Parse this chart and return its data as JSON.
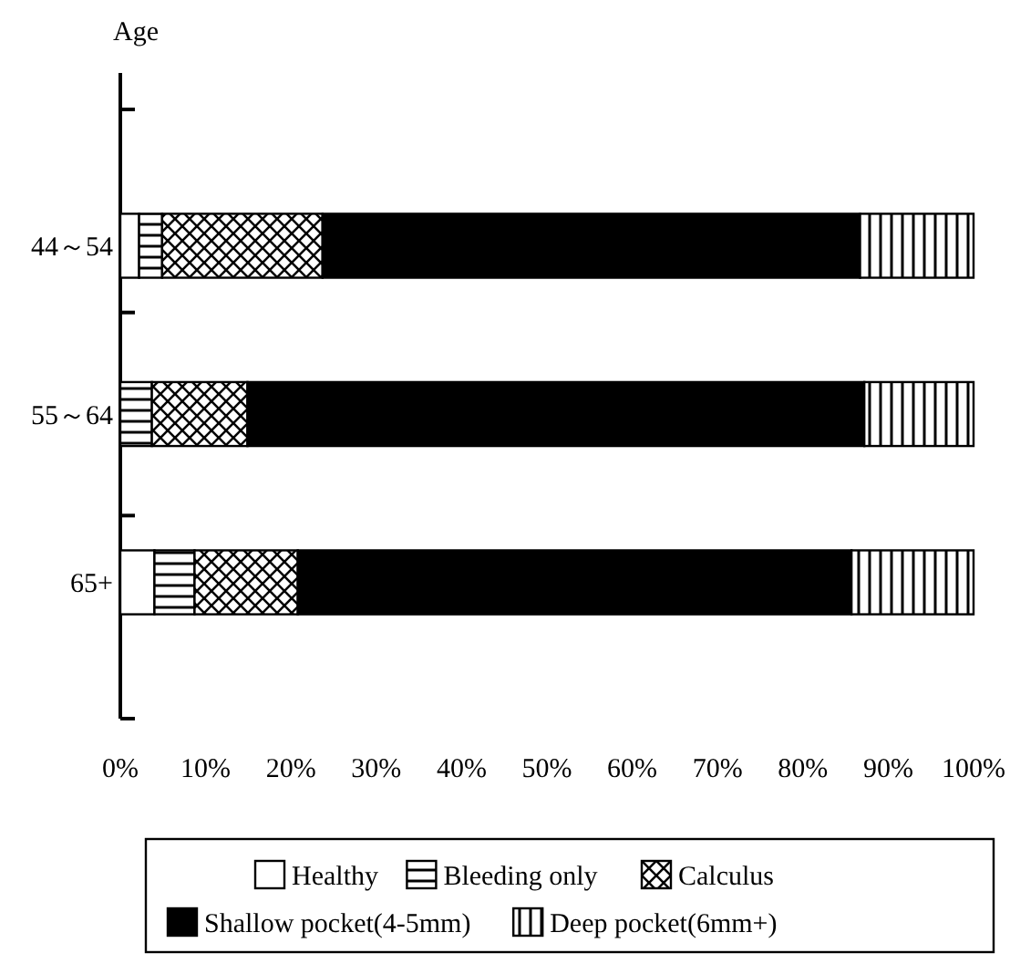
{
  "chart_data": {
    "type": "bar",
    "orientation": "horizontal",
    "stacked": true,
    "ylabel": "Age",
    "categories": [
      "44～54",
      "55～64",
      "65+"
    ],
    "series": [
      {
        "name": "Healthy",
        "color": "#ffffff",
        "values": [
          2.2,
          0,
          4
        ]
      },
      {
        "name": "Bleeding only",
        "color": "#000000",
        "values": [
          2.7,
          3.7,
          4.7
        ]
      },
      {
        "name": "Calculus",
        "color": "#000000",
        "values": [
          18.8,
          11.2,
          12.1
        ]
      },
      {
        "name": "Shallow pocket(4-5mm)",
        "color": "#000000",
        "values": [
          63,
          72.3,
          64.9
        ]
      },
      {
        "name": "Deep pocket(6mm+)",
        "color": "#000000",
        "values": [
          13.3,
          12.8,
          14.3
        ]
      }
    ],
    "xlim": [
      0,
      100
    ],
    "xticks": [
      {
        "value": 0,
        "label": "0%"
      },
      {
        "value": 10,
        "label": "10%"
      },
      {
        "value": 20,
        "label": "20%"
      },
      {
        "value": 30,
        "label": "30%"
      },
      {
        "value": 40,
        "label": "40%"
      },
      {
        "value": 50,
        "label": "50%"
      },
      {
        "value": 60,
        "label": "60%"
      },
      {
        "value": 70,
        "label": "70%"
      },
      {
        "value": 80,
        "label": "80%"
      },
      {
        "value": 90,
        "label": "90%"
      },
      {
        "value": 100,
        "label": "100%"
      }
    ],
    "legend": "bottom"
  }
}
